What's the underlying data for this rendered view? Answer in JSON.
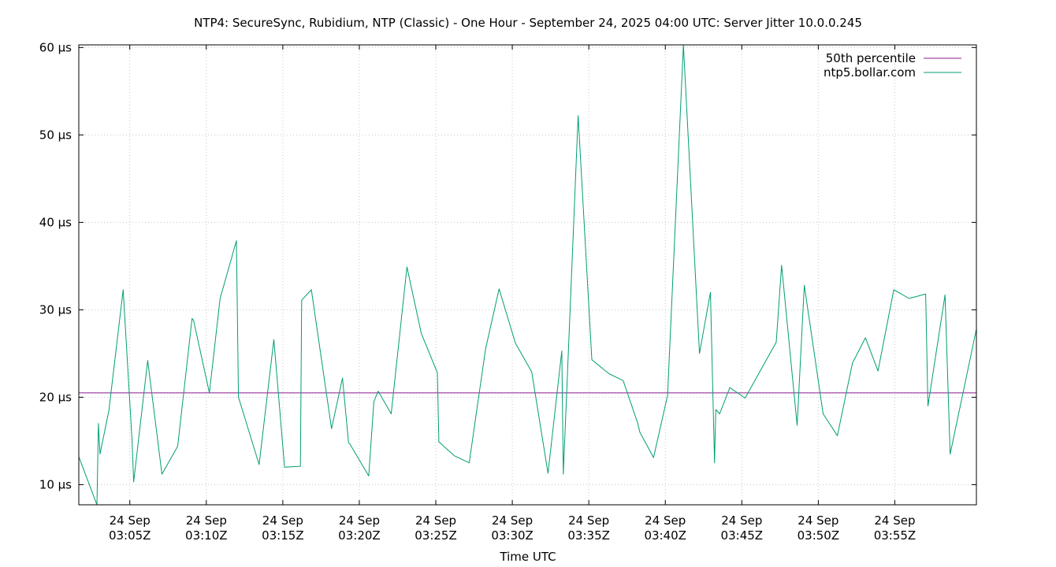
{
  "chart_data": {
    "type": "line",
    "title": "NTP4: SecureSync, Rubidium, NTP (Classic) - One Hour - September 24, 2025 04:00 UTC: Server Jitter 10.0.0.245",
    "xlabel": "Time UTC",
    "ylabel": "",
    "y_unit": "µs",
    "xlim": [
      "03:01:40",
      "03:60:20"
    ],
    "ylim": [
      7.7,
      60.3
    ],
    "grid": true,
    "legend_position": "top-right",
    "y_ticks": [
      {
        "value": 10,
        "label": "10 µs"
      },
      {
        "value": 20,
        "label": "20 µs"
      },
      {
        "value": 30,
        "label": "30 µs"
      },
      {
        "value": 40,
        "label": "40 µs"
      },
      {
        "value": 50,
        "label": "50 µs"
      },
      {
        "value": 60,
        "label": "60 µs"
      }
    ],
    "x_ticks": [
      {
        "value": "03:05",
        "line1": "24 Sep",
        "line2": "03:05Z"
      },
      {
        "value": "03:10",
        "line1": "24 Sep",
        "line2": "03:10Z"
      },
      {
        "value": "03:15",
        "line1": "24 Sep",
        "line2": "03:15Z"
      },
      {
        "value": "03:20",
        "line1": "24 Sep",
        "line2": "03:20Z"
      },
      {
        "value": "03:25",
        "line1": "24 Sep",
        "line2": "03:25Z"
      },
      {
        "value": "03:30",
        "line1": "24 Sep",
        "line2": "03:30Z"
      },
      {
        "value": "03:35",
        "line1": "24 Sep",
        "line2": "03:35Z"
      },
      {
        "value": "03:40",
        "line1": "24 Sep",
        "line2": "03:40Z"
      },
      {
        "value": "03:45",
        "line1": "24 Sep",
        "line2": "03:45Z"
      },
      {
        "value": "03:50",
        "line1": "24 Sep",
        "line2": "03:50Z"
      },
      {
        "value": "03:55",
        "line1": "24 Sep",
        "line2": "03:55Z"
      }
    ],
    "series": [
      {
        "name": "50th percentile",
        "color": "#8b1a8b",
        "x": [
          "03:01:40",
          "03:60:20"
        ],
        "y": [
          20.5,
          20.5
        ]
      },
      {
        "name": "ntp5.bollar.com",
        "color": "#009e73",
        "x": [
          "03:01:40",
          "03:02:51",
          "03:02:57",
          "03:03:03",
          "03:03:38",
          "03:04:34",
          "03:05:09",
          "03:05:15",
          "03:06:10",
          "03:07:06",
          "03:08:08",
          "03:09:04",
          "03:09:10",
          "03:10:12",
          "03:10:54",
          "03:11:58",
          "03:12:06",
          "03:13:27",
          "03:14:25",
          "03:15:07",
          "03:16:09",
          "03:16:14",
          "03:16:52",
          "03:18:11",
          "03:18:54",
          "03:19:18",
          "03:19:24",
          "03:20:37",
          "03:20:57",
          "03:21:14",
          "03:22:05",
          "03:23:07",
          "03:24:03",
          "03:25:06",
          "03:25:12",
          "03:26:13",
          "03:27:11",
          "03:28:15",
          "03:29:08",
          "03:30:12",
          "03:31:16",
          "03:32:20",
          "03:33:14",
          "03:33:20",
          "03:34:18",
          "03:35:12",
          "03:36:19",
          "03:37:15",
          "03:38:12",
          "03:38:20",
          "03:39:14",
          "03:40:09",
          "03:41:11",
          "03:42:14",
          "03:42:57",
          "03:43:13",
          "03:43:18",
          "03:43:33",
          "03:44:13",
          "03:45:13",
          "03:47:15",
          "03:47:36",
          "03:48:37",
          "03:49:05",
          "03:50:19",
          "03:51:15",
          "03:52:14",
          "03:53:05",
          "03:53:54",
          "03:54:56",
          "03:55:56",
          "03:57:01",
          "03:57:10",
          "03:58:17",
          "03:58:37",
          "03:60:20"
        ],
        "y": [
          13.2,
          7.7,
          17.0,
          13.5,
          18.5,
          32.3,
          15.0,
          10.3,
          24.2,
          11.2,
          14.4,
          29.0,
          28.8,
          20.5,
          31.3,
          37.9,
          20.0,
          12.3,
          26.6,
          12.0,
          12.1,
          31.1,
          32.3,
          16.4,
          22.2,
          14.8,
          14.6,
          11.0,
          19.5,
          20.7,
          18.1,
          34.9,
          27.3,
          22.8,
          14.9,
          13.3,
          12.5,
          25.5,
          32.4,
          26.2,
          22.9,
          11.3,
          25.3,
          11.2,
          52.2,
          24.3,
          22.7,
          21.9,
          17.0,
          16.0,
          13.1,
          20.2,
          60.3,
          25.0,
          32.0,
          12.5,
          18.6,
          18.1,
          21.1,
          19.9,
          26.3,
          35.1,
          16.8,
          32.8,
          18.1,
          15.6,
          23.9,
          26.8,
          23.0,
          32.3,
          31.3,
          31.8,
          19.0,
          31.7,
          13.5,
          27.8
        ]
      }
    ]
  }
}
